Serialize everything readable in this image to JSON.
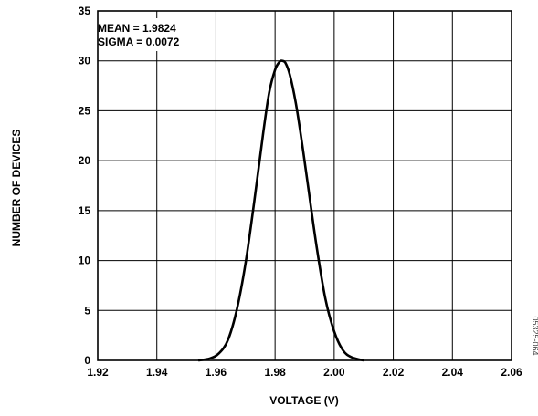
{
  "chart_data": {
    "type": "line",
    "title": "",
    "xlabel": "VOLTAGE (V)",
    "ylabel": "NUMBER OF DEVICES",
    "xlim": [
      1.92,
      2.06
    ],
    "ylim": [
      0,
      35
    ],
    "x_ticks": [
      "1.92",
      "1.94",
      "1.96",
      "1.98",
      "2.00",
      "2.02",
      "2.04",
      "2.06"
    ],
    "y_ticks": [
      "0",
      "5",
      "10",
      "15",
      "20",
      "25",
      "30",
      "35"
    ],
    "x_tick_values": [
      1.92,
      1.94,
      1.96,
      1.98,
      2.0,
      2.02,
      2.04,
      2.06
    ],
    "y_tick_values": [
      0,
      5,
      10,
      15,
      20,
      25,
      30,
      35
    ],
    "grid": true,
    "annotations": [
      "MEAN = 1.9824",
      "SIGMA = 0.0072"
    ],
    "figure_id": "05325-064",
    "series": [
      {
        "x": [
          1.954,
          1.958,
          1.961,
          1.964,
          1.967,
          1.97,
          1.973,
          1.976,
          1.978,
          1.98,
          1.9815,
          1.9824,
          1.9835,
          1.985,
          1.987,
          1.989,
          1.991,
          1.994,
          1.997,
          2.0,
          2.003,
          2.006,
          2.01
        ],
        "y": [
          0,
          0.2,
          0.7,
          2.0,
          5.0,
          9.7,
          16.0,
          22.8,
          26.8,
          29.1,
          29.9,
          30.0,
          29.8,
          28.6,
          25.8,
          22.0,
          17.8,
          11.5,
          6.2,
          2.9,
          1.0,
          0.3,
          0
        ]
      }
    ]
  }
}
